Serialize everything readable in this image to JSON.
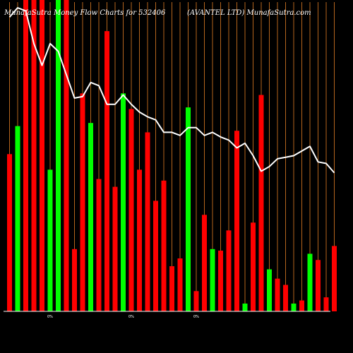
{
  "title_left": "MunafaSutra Money Flow  Charts for 532406",
  "title_right": "(AVANTEL  LTD) MunafaSutra.com",
  "colors": {
    "background": "#000000",
    "grid": "#b5651d",
    "up": "#00ff00",
    "down": "#ff0000",
    "line": "#ffffff",
    "text": "#ffffff"
  },
  "chart_data": {
    "type": "bar",
    "title": "MunafaSutra Money Flow  Charts for 532406",
    "subtitle": "(AVANTEL  LTD) MunafaSutra.com",
    "grid": true,
    "bar_scale": [
      0,
      100
    ],
    "bars": [
      {
        "value": 50.5,
        "color": "down"
      },
      {
        "value": 59.5,
        "color": "up"
      },
      {
        "value": 100,
        "color": "down"
      },
      {
        "value": 100,
        "color": "down"
      },
      {
        "value": 100,
        "color": "down"
      },
      {
        "value": 45.5,
        "color": "up"
      },
      {
        "value": 100,
        "color": "up"
      },
      {
        "value": 100,
        "color": "down"
      },
      {
        "value": 20.0,
        "color": "down"
      },
      {
        "value": 70.0,
        "color": "down"
      },
      {
        "value": 60.5,
        "color": "up"
      },
      {
        "value": 42.5,
        "color": "down"
      },
      {
        "value": 90.0,
        "color": "down"
      },
      {
        "value": 40.0,
        "color": "down"
      },
      {
        "value": 70.0,
        "color": "up"
      },
      {
        "value": 65.0,
        "color": "down"
      },
      {
        "value": 45.5,
        "color": "down"
      },
      {
        "value": 57.5,
        "color": "down"
      },
      {
        "value": 35.5,
        "color": "down"
      },
      {
        "value": 42.0,
        "color": "down"
      },
      {
        "value": 14.5,
        "color": "down"
      },
      {
        "value": 17.0,
        "color": "down"
      },
      {
        "value": 65.5,
        "color": "up"
      },
      {
        "value": 6.5,
        "color": "down"
      },
      {
        "value": 31.0,
        "color": "down"
      },
      {
        "value": 20.0,
        "color": "up"
      },
      {
        "value": 19.5,
        "color": "down"
      },
      {
        "value": 26.0,
        "color": "down"
      },
      {
        "value": 58.0,
        "color": "down"
      },
      {
        "value": 2.5,
        "color": "up"
      },
      {
        "value": 28.5,
        "color": "down"
      },
      {
        "value": 69.5,
        "color": "down"
      },
      {
        "value": 13.5,
        "color": "up"
      },
      {
        "value": 10.5,
        "color": "down"
      },
      {
        "value": 8.5,
        "color": "down"
      },
      {
        "value": 2.5,
        "color": "up"
      },
      {
        "value": 3.5,
        "color": "down"
      },
      {
        "value": 18.5,
        "color": "up"
      },
      {
        "value": 16.5,
        "color": "down"
      },
      {
        "value": 4.5,
        "color": "down"
      },
      {
        "value": 21.0,
        "color": "down"
      }
    ],
    "line": {
      "name": "",
      "values": [
        94.5,
        97.5,
        96.5,
        86.0,
        79.0,
        86.0,
        83.5,
        76.0,
        68.5,
        69.0,
        73.5,
        72.5,
        66.5,
        66.5,
        69.5,
        66.5,
        64.0,
        62.5,
        61.5,
        57.5,
        57.5,
        56.5,
        59.0,
        59.0,
        56.5,
        57.5,
        56.0,
        55.0,
        52.5,
        54.0,
        50.0,
        45.0,
        46.5,
        49.0,
        49.5,
        50.0,
        51.5,
        53.0,
        48.0,
        47.5,
        44.5
      ]
    },
    "gridlines": 41,
    "x_marker_label": "0%"
  }
}
